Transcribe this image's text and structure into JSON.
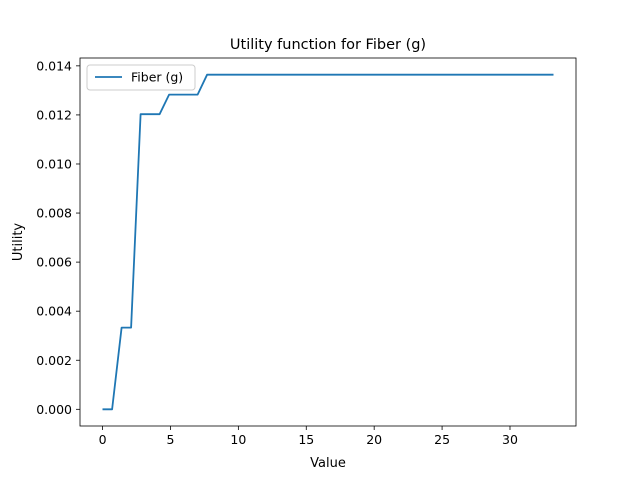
{
  "chart_data": {
    "type": "line",
    "title": "Utility function for Fiber (g)",
    "xlabel": "Value",
    "ylabel": "Utility",
    "xlim": [
      -1.66,
      34.86
    ],
    "ylim": [
      -0.00068,
      0.01432
    ],
    "xticks": [
      0,
      5,
      10,
      15,
      20,
      25,
      30
    ],
    "yticks": [
      0.0,
      0.002,
      0.004,
      0.006,
      0.008,
      0.01,
      0.012,
      0.014
    ],
    "ytick_labels": [
      "0.000",
      "0.002",
      "0.004",
      "0.006",
      "0.008",
      "0.010",
      "0.012",
      "0.014"
    ],
    "grid": false,
    "legend_placement": "upper-left",
    "series": [
      {
        "name": "Fiber (g)",
        "color": "#1f77b4",
        "x": [
          0.0,
          0.7,
          1.4,
          2.1,
          2.8,
          4.2,
          4.9,
          7.0,
          7.7,
          33.2
        ],
        "y": [
          0.0,
          0.0,
          0.00333,
          0.00333,
          0.01203,
          0.01203,
          0.01283,
          0.01283,
          0.01364,
          0.01364
        ]
      }
    ]
  }
}
